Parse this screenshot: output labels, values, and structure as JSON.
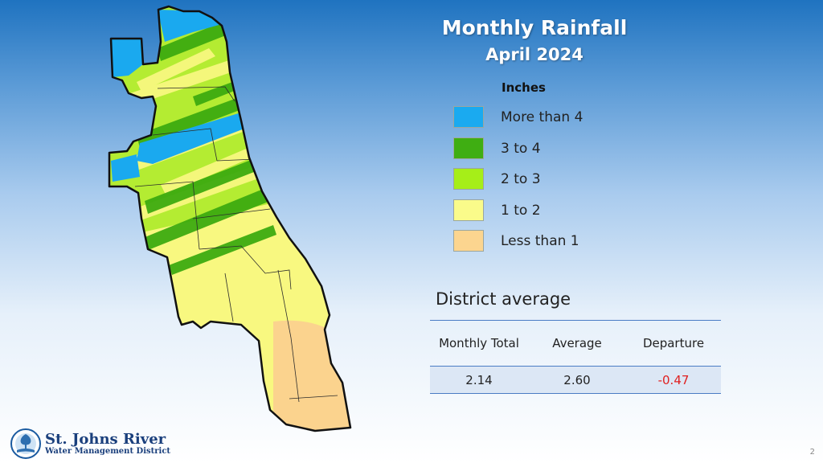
{
  "title": "Monthly Rainfall",
  "subtitle": "April 2024",
  "legend": {
    "heading": "Inches",
    "items": [
      {
        "label": "More than 4",
        "color": "#1aaaf0"
      },
      {
        "label": "3 to 4",
        "color": "#3fae12"
      },
      {
        "label": "2 to 3",
        "color": "#a6ee18"
      },
      {
        "label": "1 to 2",
        "color": "#fafb8a"
      },
      {
        "label": "Less than 1",
        "color": "#fcd58f"
      }
    ]
  },
  "district_average": {
    "heading": "District average",
    "columns": [
      "Monthly Total",
      "Average",
      "Departure"
    ],
    "values": [
      "2.14",
      "2.60",
      "-0.47"
    ]
  },
  "logo": {
    "line1": "St. Johns River",
    "line2": "Water Management District"
  },
  "page_number": "2"
}
